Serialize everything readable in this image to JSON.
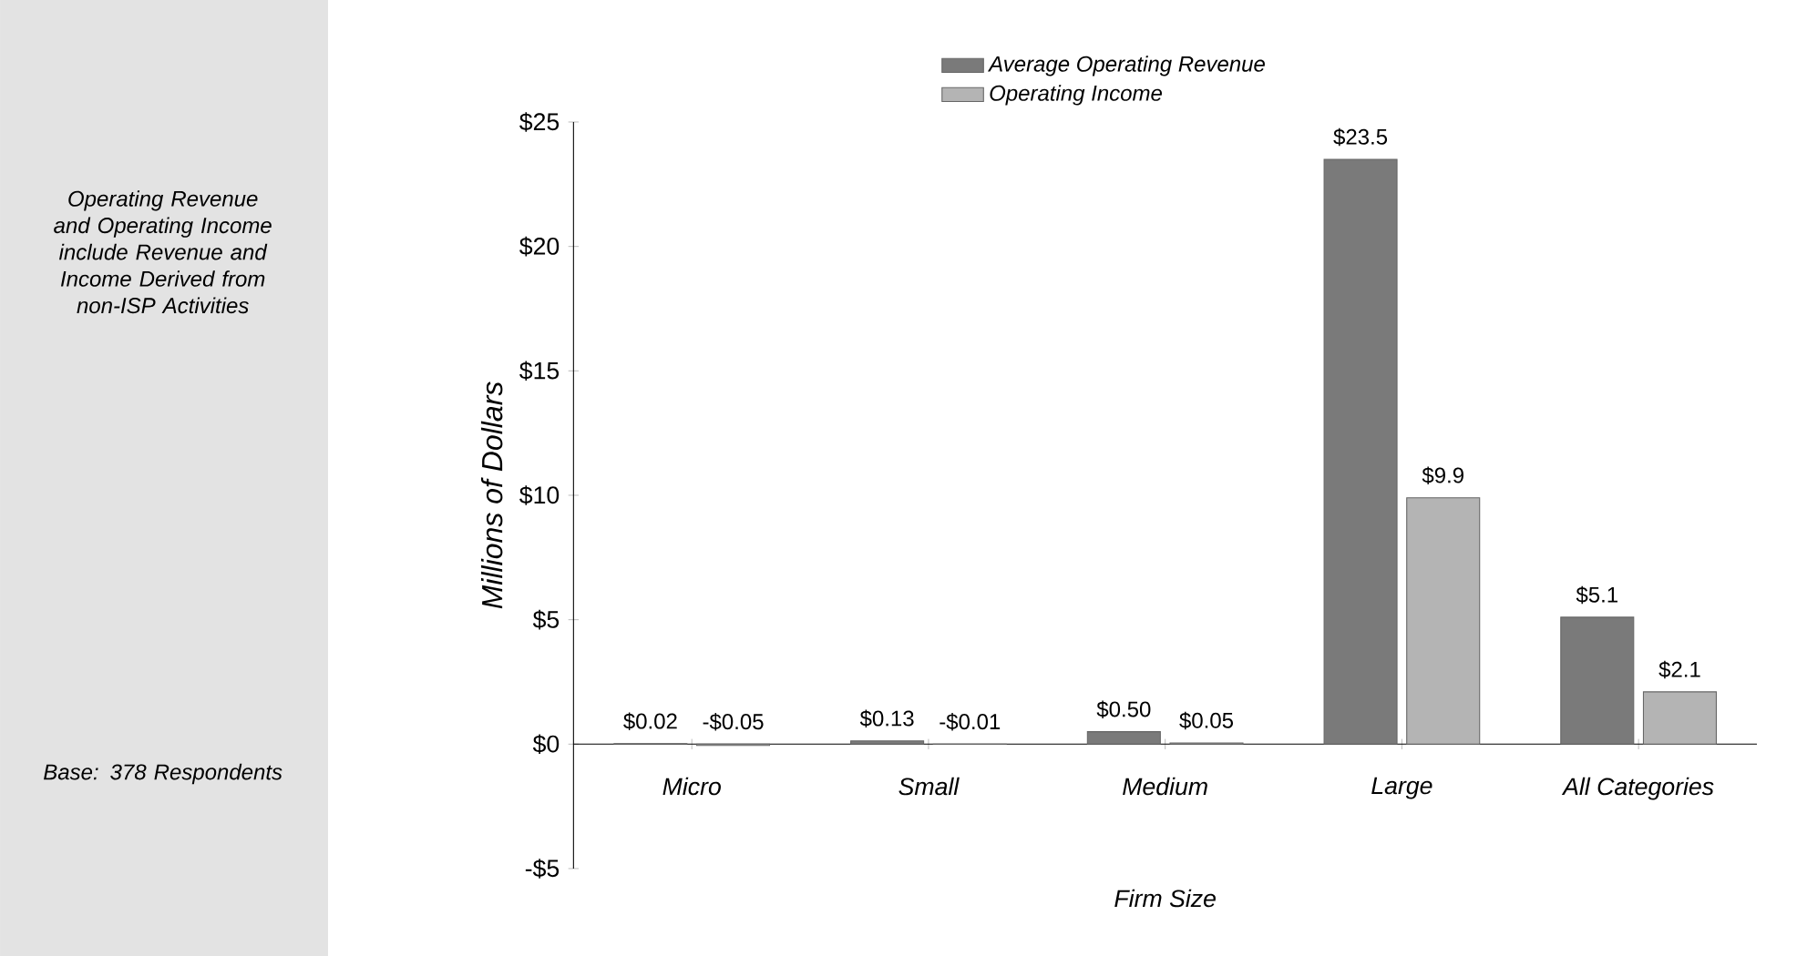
{
  "chart_data": {
    "type": "bar",
    "xlabel": "Firm Size",
    "ylabel": "Millions of Dollars",
    "categories": [
      "Micro",
      "Small",
      "Medium",
      "Large",
      "All Categories"
    ],
    "series": [
      {
        "name": "Average Operating Revenue",
        "color": "#7a7a7a",
        "values": [
          0.02,
          0.13,
          0.5,
          23.5,
          5.1
        ],
        "value_labels": [
          "$0.02",
          "$0.13",
          "$0.50",
          "$23.5",
          "$5.1"
        ]
      },
      {
        "name": "Operating Income",
        "color": "#b4b4b4",
        "values": [
          -0.05,
          -0.01,
          0.05,
          9.9,
          2.1
        ],
        "value_labels": [
          "-$0.05",
          "-$0.01",
          "$0.05",
          "$9.9",
          "$2.1"
        ]
      }
    ],
    "ylim": [
      -5,
      25
    ],
    "yticks": [
      {
        "value": -5,
        "label": "-$5"
      },
      {
        "value": 0,
        "label": "$0"
      },
      {
        "value": 5,
        "label": "$5"
      },
      {
        "value": 10,
        "label": "$10"
      },
      {
        "value": 15,
        "label": "$15"
      },
      {
        "value": 20,
        "label": "$20"
      },
      {
        "value": 25,
        "label": "$25"
      }
    ],
    "legend": "top",
    "annotations": [
      "Operating Revenue and Operating Income include Revenue and Income Derived from non-ISP Activities",
      "Base: 378 Respondents"
    ]
  }
}
